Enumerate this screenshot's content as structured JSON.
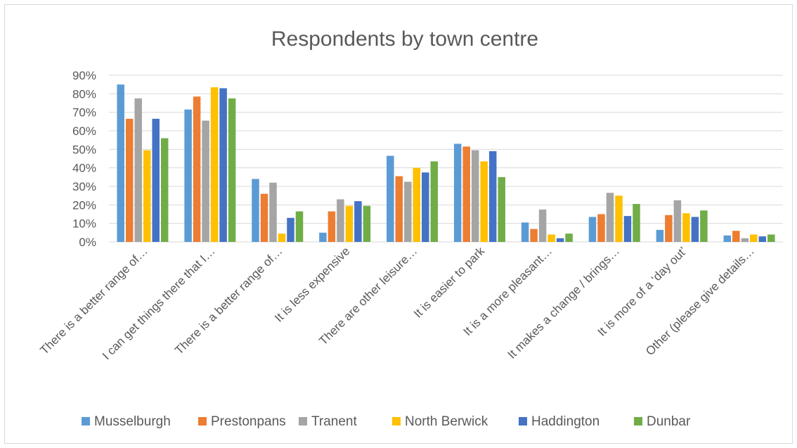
{
  "chart_data": {
    "type": "bar",
    "title": "Respondents by town centre",
    "xlabel": "",
    "ylabel": "",
    "ylim": [
      0,
      90
    ],
    "yticks": [
      "0%",
      "10%",
      "20%",
      "30%",
      "40%",
      "50%",
      "60%",
      "70%",
      "80%",
      "90%"
    ],
    "grid": true,
    "legend_position": "bottom",
    "categories": [
      "There is a better range of…",
      "I can get things there that I…",
      "There is a better range of…",
      "It is less expensive",
      "There are other leisure…",
      "It is easier to park",
      "It is a more pleasant…",
      "It makes a change / brings…",
      "It is more of a ‘day out’",
      "Other (please give details…"
    ],
    "series": [
      {
        "name": "Musselburgh",
        "color": "#5b9bd5",
        "values": [
          85,
          71.5,
          34,
          5,
          46.5,
          53,
          10.5,
          13.5,
          6.5,
          3.5
        ]
      },
      {
        "name": "Prestonpans",
        "color": "#ed7d31",
        "values": [
          66.5,
          78.5,
          26,
          16.5,
          35.5,
          51.5,
          7,
          15,
          14.5,
          6
        ]
      },
      {
        "name": "Tranent",
        "color": "#a5a5a5",
        "values": [
          77.5,
          65.5,
          32,
          23,
          32.5,
          49.5,
          17.5,
          26.5,
          22.5,
          2
        ]
      },
      {
        "name": "North Berwick",
        "color": "#ffc000",
        "values": [
          49.5,
          83.5,
          4.5,
          19.5,
          40,
          43.5,
          4,
          25,
          15.5,
          4
        ]
      },
      {
        "name": "Haddington",
        "color": "#4472c4",
        "values": [
          66.5,
          83,
          13,
          22,
          37.5,
          49,
          2,
          14,
          13.5,
          3
        ]
      },
      {
        "name": "Dunbar",
        "color": "#70ad47",
        "values": [
          56,
          77.5,
          16.5,
          19.5,
          43.5,
          35,
          4.5,
          20.5,
          17,
          4
        ]
      }
    ]
  }
}
